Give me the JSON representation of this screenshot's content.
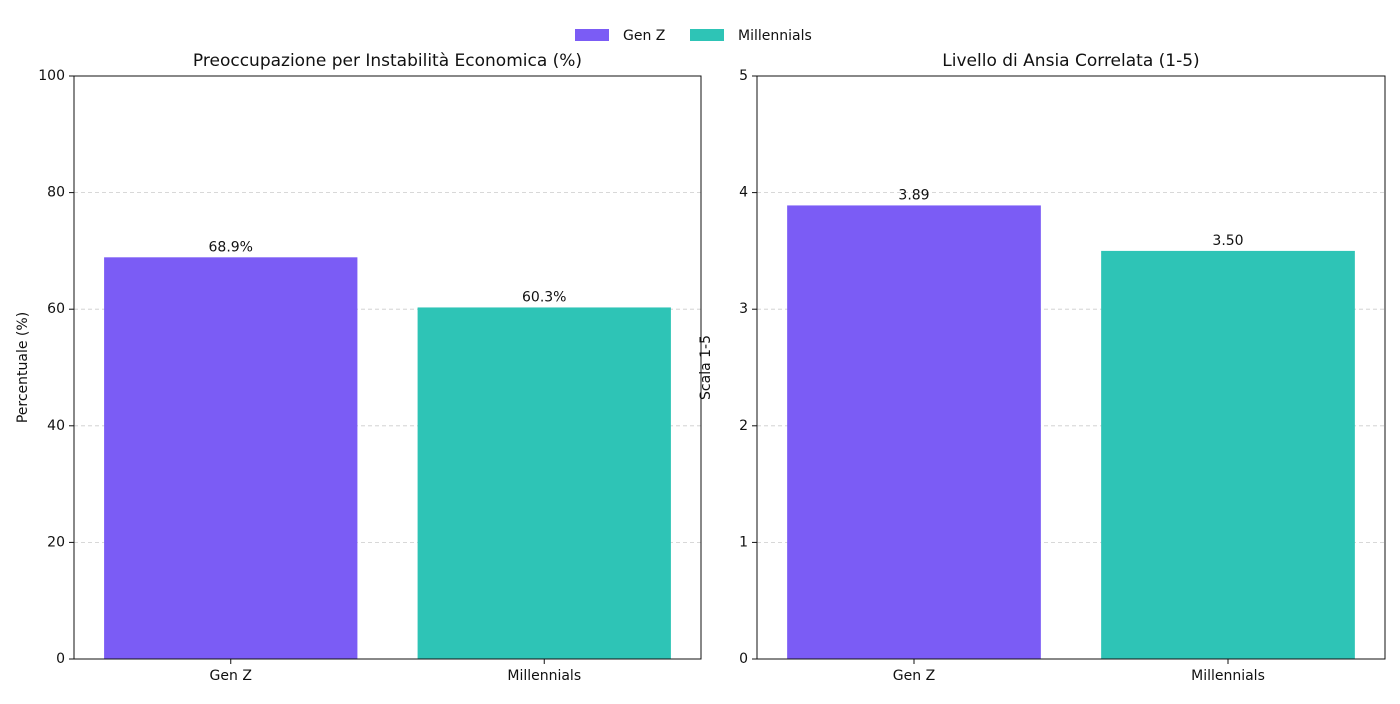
{
  "chart_data": [
    {
      "type": "bar",
      "title": "Preoccupazione per Instabilità Economica (%)",
      "y_label": "Percentuale (%)",
      "categories": [
        "Gen Z",
        "Millennials"
      ],
      "values": [
        68.9,
        60.3
      ],
      "value_labels": [
        "68.9%",
        "60.3%"
      ],
      "colors": [
        "#7b5cf5",
        "#2ec4b6"
      ],
      "ylim": [
        0,
        100
      ],
      "yticks": [
        0,
        20,
        40,
        60,
        80,
        100
      ],
      "grid": true
    },
    {
      "type": "bar",
      "title": "Livello di Ansia Correlata (1-5)",
      "y_label": "Scala 1-5",
      "categories": [
        "Gen Z",
        "Millennials"
      ],
      "values": [
        3.89,
        3.5
      ],
      "value_labels": [
        "3.89",
        "3.50"
      ],
      "colors": [
        "#7b5cf5",
        "#2ec4b6"
      ],
      "ylim": [
        0,
        5
      ],
      "yticks": [
        0,
        1,
        2,
        3,
        4,
        5
      ],
      "grid": true
    }
  ]
}
